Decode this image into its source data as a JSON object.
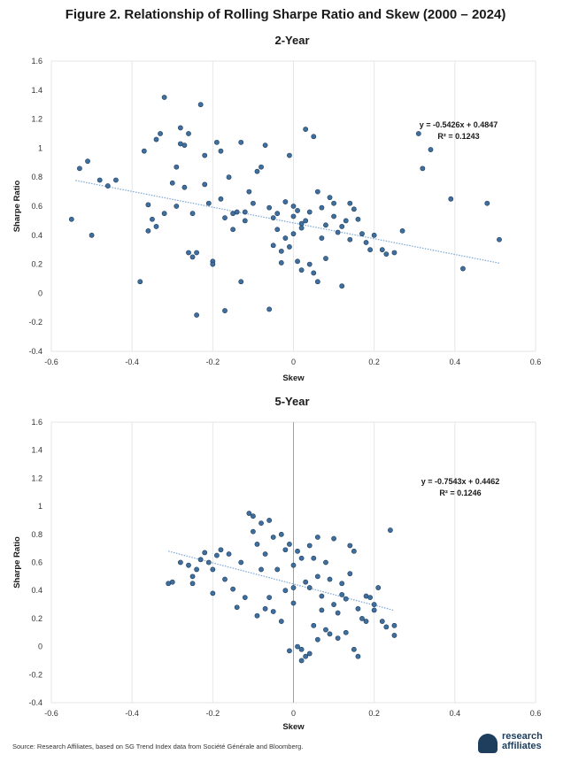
{
  "figure_title": "Figure 2. Relationship of Rolling Sharpe Ratio and Skew (2000 – 2024)",
  "footer": "Source: Research Affiliates, based on SG Trend Index data from Société Générale and Bloomberg.",
  "logo": {
    "line1": "research",
    "line2": "affiliates"
  },
  "colors": {
    "point_fill": "#3f6f9e",
    "point_stroke": "#1f3d5c",
    "trend": "#7aa6d6",
    "grid": "#e6e6e6"
  },
  "chart_data": [
    {
      "type": "scatter",
      "title": "2-Year",
      "xlabel": "Skew",
      "ylabel": "Sharpe Ratio",
      "xlim": [
        -0.6,
        0.6
      ],
      "ylim": [
        -0.4,
        1.6
      ],
      "xticks": [
        "-0.6",
        "-0.4",
        "-0.2",
        "0",
        "0.2",
        "0.4",
        "0.6"
      ],
      "yticks": [
        "-0.4",
        "-0.2",
        "0",
        "0.2",
        "0.4",
        "0.6",
        "0.8",
        "1",
        "1.2",
        "1.4",
        "1.6"
      ],
      "equation": "y = -0.5426x + 0.4847",
      "r2": "R² = 0.1243",
      "trend": {
        "slope": -0.5426,
        "intercept": 0.4847,
        "x_range": [
          -0.54,
          0.51
        ]
      },
      "grid": "vertical",
      "zero_line": false,
      "points": [
        [
          -0.55,
          0.51
        ],
        [
          -0.53,
          0.86
        ],
        [
          -0.51,
          0.91
        ],
        [
          -0.5,
          0.4
        ],
        [
          -0.48,
          0.78
        ],
        [
          -0.46,
          0.74
        ],
        [
          -0.44,
          0.78
        ],
        [
          -0.38,
          0.08
        ],
        [
          -0.37,
          0.98
        ],
        [
          -0.36,
          0.61
        ],
        [
          -0.36,
          0.43
        ],
        [
          -0.35,
          0.51
        ],
        [
          -0.34,
          1.06
        ],
        [
          -0.34,
          0.46
        ],
        [
          -0.33,
          1.1
        ],
        [
          -0.32,
          1.35
        ],
        [
          -0.32,
          0.55
        ],
        [
          -0.3,
          0.76
        ],
        [
          -0.29,
          0.87
        ],
        [
          -0.29,
          0.6
        ],
        [
          -0.28,
          1.14
        ],
        [
          -0.28,
          1.03
        ],
        [
          -0.27,
          0.73
        ],
        [
          -0.27,
          1.02
        ],
        [
          -0.26,
          1.1
        ],
        [
          -0.26,
          0.28
        ],
        [
          -0.25,
          0.55
        ],
        [
          -0.25,
          0.25
        ],
        [
          -0.24,
          0.28
        ],
        [
          -0.23,
          1.3
        ],
        [
          -0.22,
          0.95
        ],
        [
          -0.22,
          0.75
        ],
        [
          -0.21,
          0.62
        ],
        [
          -0.2,
          0.22
        ],
        [
          -0.19,
          1.04
        ],
        [
          -0.18,
          0.98
        ],
        [
          -0.18,
          0.65
        ],
        [
          -0.17,
          0.52
        ],
        [
          -0.16,
          0.8
        ],
        [
          -0.15,
          0.44
        ],
        [
          -0.14,
          0.56
        ],
        [
          -0.13,
          1.04
        ],
        [
          -0.12,
          0.5
        ],
        [
          -0.11,
          0.7
        ],
        [
          -0.1,
          0.62
        ],
        [
          -0.09,
          0.84
        ],
        [
          -0.08,
          0.87
        ],
        [
          -0.07,
          1.02
        ],
        [
          -0.06,
          0.59
        ],
        [
          -0.05,
          0.52
        ],
        [
          -0.04,
          0.44
        ],
        [
          -0.03,
          0.29
        ],
        [
          -0.02,
          0.38
        ],
        [
          -0.02,
          0.63
        ],
        [
          -0.01,
          0.95
        ],
        [
          0,
          0.41
        ],
        [
          0,
          0.53
        ],
        [
          0.01,
          0.57
        ],
        [
          0.02,
          0.48
        ],
        [
          0.03,
          0.5
        ],
        [
          0.03,
          1.13
        ],
        [
          0.04,
          0.56
        ],
        [
          0.05,
          1.08
        ],
        [
          0.06,
          0.7
        ],
        [
          0.07,
          0.59
        ],
        [
          0.08,
          0.47
        ],
        [
          0.09,
          0.66
        ],
        [
          0.1,
          0.53
        ],
        [
          0.11,
          0.42
        ],
        [
          0.12,
          0.05
        ],
        [
          0.12,
          0.46
        ],
        [
          0.13,
          0.5
        ],
        [
          0.14,
          0.37
        ],
        [
          0.15,
          0.58
        ],
        [
          0.16,
          0.51
        ],
        [
          0.17,
          0.41
        ],
        [
          0.18,
          0.35
        ],
        [
          0.19,
          0.3
        ],
        [
          0.2,
          0.4
        ],
        [
          0.22,
          0.3
        ],
        [
          0.23,
          0.27
        ],
        [
          0.25,
          0.28
        ],
        [
          0.27,
          0.43
        ],
        [
          0.31,
          1.1
        ],
        [
          0.32,
          0.86
        ],
        [
          0.34,
          0.99
        ],
        [
          0.39,
          0.65
        ],
        [
          0.42,
          0.17
        ],
        [
          0.48,
          0.62
        ],
        [
          0.51,
          0.37
        ],
        [
          -0.24,
          -0.15
        ],
        [
          -0.17,
          -0.12
        ],
        [
          -0.06,
          -0.11
        ],
        [
          -0.13,
          0.08
        ],
        [
          -0.2,
          0.2
        ],
        [
          -0.05,
          0.33
        ],
        [
          -0.03,
          0.21
        ],
        [
          0.01,
          0.22
        ],
        [
          0.02,
          0.16
        ],
        [
          0.04,
          0.2
        ],
        [
          0.05,
          0.14
        ],
        [
          0.06,
          0.08
        ],
        [
          0.08,
          0.24
        ],
        [
          -0.04,
          0.55
        ],
        [
          0.0,
          0.6
        ],
        [
          0.1,
          0.62
        ],
        [
          -0.15,
          0.55
        ],
        [
          -0.12,
          0.56
        ],
        [
          0.07,
          0.38
        ],
        [
          -0.01,
          0.32
        ],
        [
          0.02,
          0.45
        ],
        [
          0.14,
          0.62
        ]
      ]
    },
    {
      "type": "scatter",
      "title": "5-Year",
      "xlabel": "Skew",
      "ylabel": "Sharpe Ratio",
      "xlim": [
        -0.6,
        0.6
      ],
      "ylim": [
        -0.4,
        1.6
      ],
      "xticks": [
        "-0.6",
        "-0.4",
        "-0.2",
        "0",
        "0.2",
        "0.4",
        "0.6"
      ],
      "yticks": [
        "-0.4",
        "-0.2",
        "0",
        "0.2",
        "0.4",
        "0.6",
        "0.8",
        "1",
        "1.2",
        "1.4",
        "1.6"
      ],
      "equation": "y = -0.7543x + 0.4462",
      "r2": "R² = 0.1246",
      "trend": {
        "slope": -0.7543,
        "intercept": 0.4462,
        "x_range": [
          -0.31,
          0.25
        ]
      },
      "grid": "vertical",
      "zero_line": true,
      "points": [
        [
          -0.31,
          0.45
        ],
        [
          -0.3,
          0.46
        ],
        [
          -0.28,
          0.6
        ],
        [
          -0.26,
          0.58
        ],
        [
          -0.25,
          0.5
        ],
        [
          -0.25,
          0.45
        ],
        [
          -0.24,
          0.55
        ],
        [
          -0.23,
          0.62
        ],
        [
          -0.22,
          0.67
        ],
        [
          -0.21,
          0.6
        ],
        [
          -0.2,
          0.55
        ],
        [
          -0.2,
          0.38
        ],
        [
          -0.19,
          0.65
        ],
        [
          -0.18,
          0.69
        ],
        [
          -0.17,
          0.48
        ],
        [
          -0.16,
          0.66
        ],
        [
          -0.15,
          0.41
        ],
        [
          -0.14,
          0.28
        ],
        [
          -0.13,
          0.6
        ],
        [
          -0.12,
          0.35
        ],
        [
          -0.11,
          0.95
        ],
        [
          -0.1,
          0.93
        ],
        [
          -0.1,
          0.82
        ],
        [
          -0.09,
          0.73
        ],
        [
          -0.08,
          0.88
        ],
        [
          -0.07,
          0.66
        ],
        [
          -0.07,
          0.27
        ],
        [
          -0.06,
          0.9
        ],
        [
          -0.05,
          0.78
        ],
        [
          -0.04,
          0.55
        ],
        [
          -0.03,
          0.8
        ],
        [
          -0.02,
          0.69
        ],
        [
          -0.01,
          0.73
        ],
        [
          0,
          0.58
        ],
        [
          0,
          0.31
        ],
        [
          0.01,
          0.68
        ],
        [
          0.02,
          0.63
        ],
        [
          0.02,
          -0.02
        ],
        [
          0.03,
          0.46
        ],
        [
          0.04,
          0.42
        ],
        [
          0.05,
          0.63
        ],
        [
          0.06,
          0.5
        ],
        [
          0.07,
          0.36
        ],
        [
          0.08,
          0.6
        ],
        [
          0.09,
          0.48
        ],
        [
          0.1,
          0.3
        ],
        [
          0.11,
          0.24
        ],
        [
          0.12,
          0.45
        ],
        [
          0.13,
          0.34
        ],
        [
          0.14,
          0.52
        ],
        [
          0.15,
          0.68
        ],
        [
          0.16,
          0.27
        ],
        [
          0.17,
          0.2
        ],
        [
          0.18,
          0.36
        ],
        [
          0.19,
          0.35
        ],
        [
          0.2,
          0.3
        ],
        [
          0.21,
          0.42
        ],
        [
          0.22,
          0.18
        ],
        [
          0.23,
          0.14
        ],
        [
          0.24,
          0.83
        ],
        [
          0.25,
          0.15
        ],
        [
          0.25,
          0.08
        ],
        [
          -0.01,
          -0.03
        ],
        [
          0.01,
          0.0
        ],
        [
          0.03,
          -0.07
        ],
        [
          0.02,
          -0.1
        ],
        [
          0.04,
          -0.05
        ],
        [
          0.06,
          0.05
        ],
        [
          0.09,
          0.09
        ],
        [
          0.11,
          0.06
        ],
        [
          0.13,
          0.1
        ],
        [
          0.15,
          -0.02
        ],
        [
          0.16,
          -0.07
        ],
        [
          0.05,
          0.15
        ],
        [
          0.08,
          0.12
        ],
        [
          -0.03,
          0.18
        ],
        [
          -0.05,
          0.25
        ],
        [
          -0.09,
          0.22
        ],
        [
          -0.08,
          0.55
        ],
        [
          0.06,
          0.78
        ],
        [
          0.1,
          0.77
        ],
        [
          0.07,
          0.26
        ],
        [
          0.12,
          0.37
        ],
        [
          0.0,
          0.42
        ],
        [
          -0.02,
          0.4
        ],
        [
          0.14,
          0.72
        ],
        [
          0.18,
          0.18
        ],
        [
          0.2,
          0.26
        ],
        [
          0.04,
          0.72
        ],
        [
          -0.06,
          0.35
        ]
      ]
    }
  ]
}
